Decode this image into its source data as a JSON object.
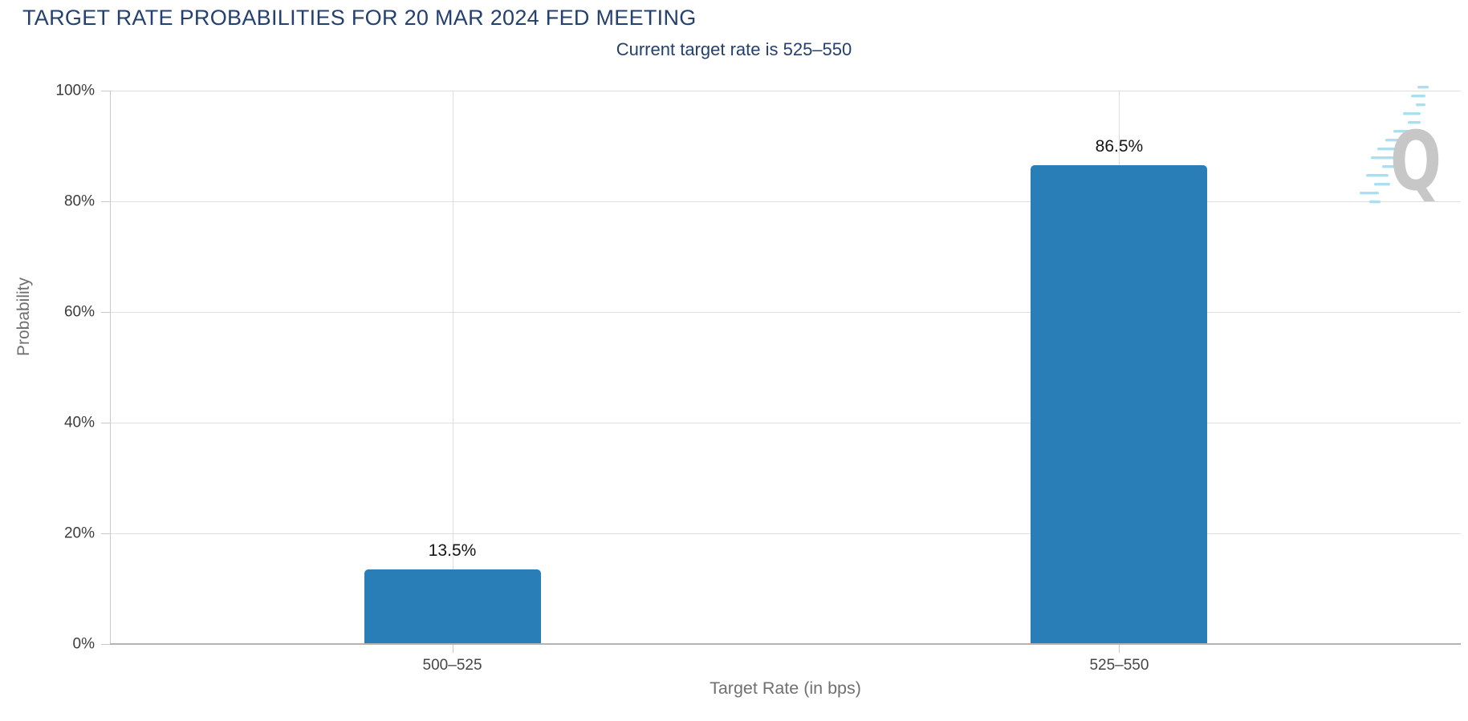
{
  "header": {
    "title": "TARGET RATE PROBABILITIES FOR 20 MAR 2024 FED MEETING",
    "subtitle": "Current target rate is 525–550"
  },
  "chart_data": {
    "type": "bar",
    "title": "TARGET RATE PROBABILITIES FOR 20 MAR 2024 FED MEETING",
    "subtitle": "Current target rate is 525–550",
    "categories": [
      "500–525",
      "525–550"
    ],
    "values": [
      13.5,
      86.5
    ],
    "value_labels": [
      "13.5%",
      "86.5%"
    ],
    "xlabel": "Target Rate (in bps)",
    "ylabel": "Probability",
    "ylim": [
      0,
      100
    ],
    "y_ticks": [
      "0%",
      "20%",
      "40%",
      "60%",
      "80%",
      "100%"
    ],
    "grid": "on",
    "legend": "none",
    "bar_color": "#2A7EB8",
    "title_color": "#24406E",
    "axis_title_color": "#707070",
    "tick_label_color": "#3C3C3C",
    "gridline_color": "#DEDEDE",
    "axis_line_color": "#B3B3B3"
  },
  "watermark": {
    "letter": "Q",
    "letter_color": "#C7C7C7",
    "dash_color": "#AADFF2"
  }
}
